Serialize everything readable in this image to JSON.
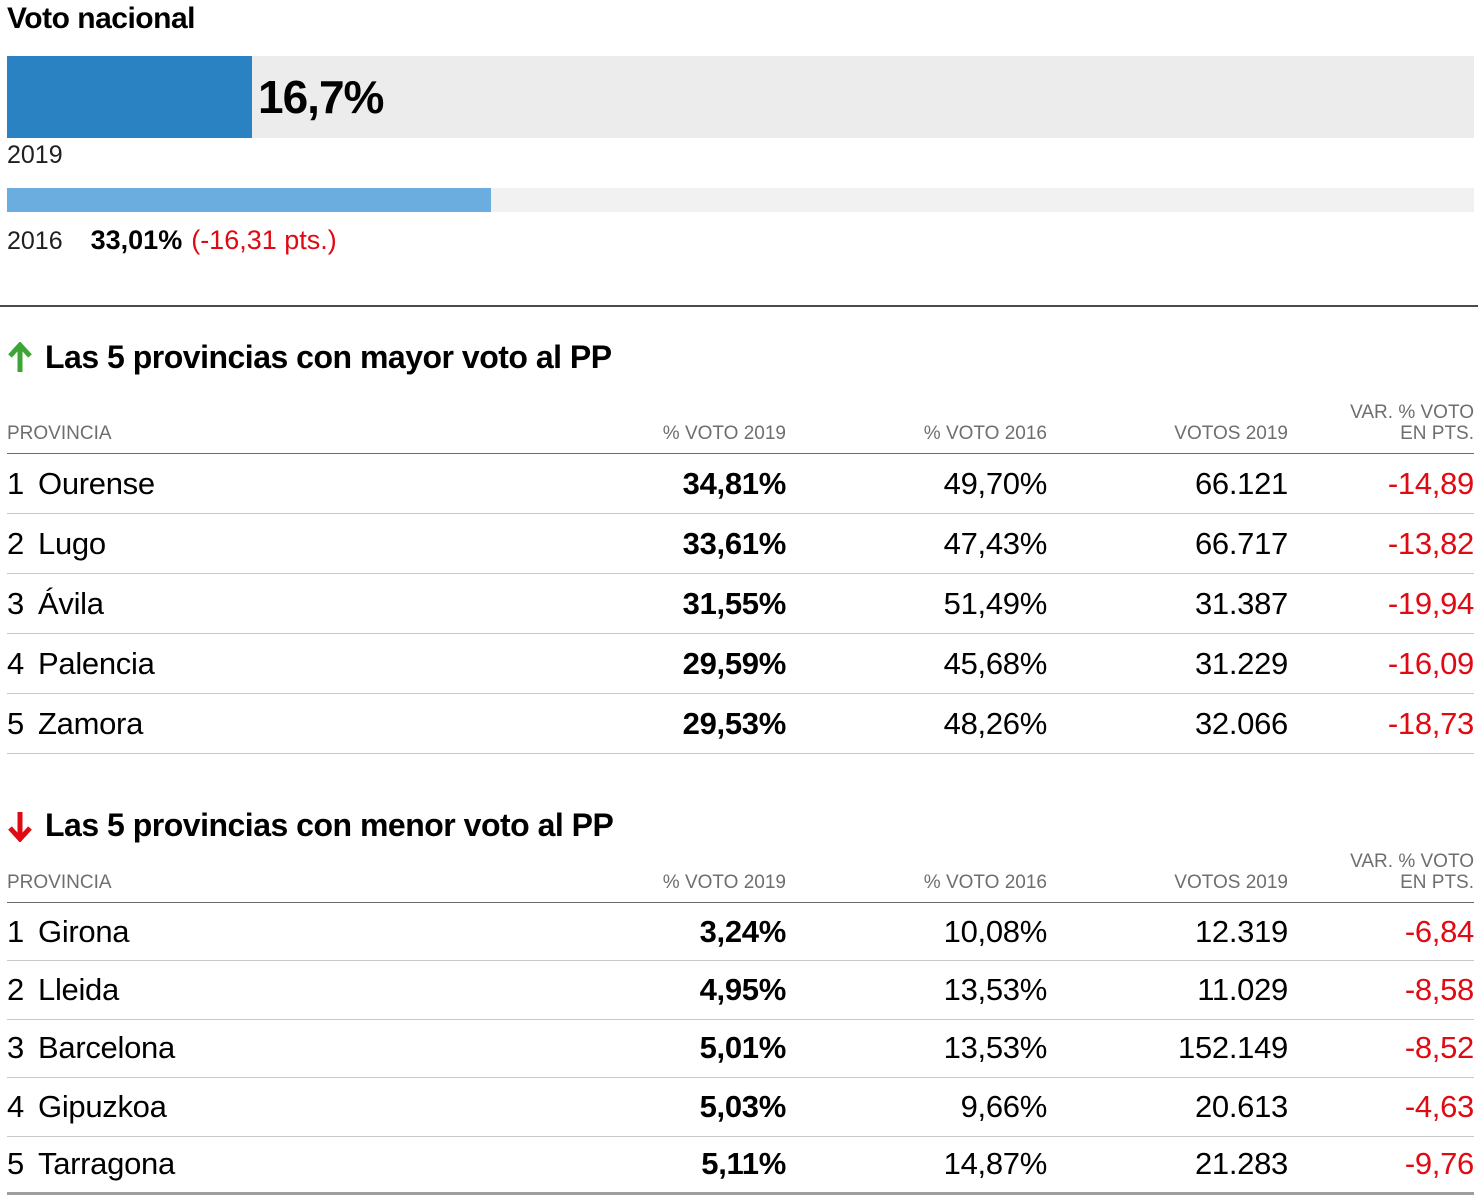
{
  "title": "Voto nacional",
  "national_chart": {
    "bars": [
      {
        "year": "2019",
        "pct": 16.7,
        "value_label": "16,7%"
      },
      {
        "year": "2016",
        "pct": 33.01,
        "value_label": "33,01%",
        "change_label": "(-16,31 pts.)"
      }
    ]
  },
  "sections": [
    {
      "direction": "up",
      "heading": "Las 5 provincias con mayor voto al PP",
      "columns": {
        "province": "PROVINCIA",
        "voto2019": "% VOTO 2019",
        "voto2016": "% VOTO 2016",
        "votos2019": "VOTOS 2019",
        "var_line1": "VAR. % VOTO",
        "var_line2": "EN PTS."
      },
      "rows": [
        {
          "rank": "1",
          "province": "Ourense",
          "voto2019": "34,81%",
          "voto2016": "49,70%",
          "votos2019": "66.121",
          "var_pts": "-14,89"
        },
        {
          "rank": "2",
          "province": "Lugo",
          "voto2019": "33,61%",
          "voto2016": "47,43%",
          "votos2019": "66.717",
          "var_pts": "-13,82"
        },
        {
          "rank": "3",
          "province": "Ávila",
          "voto2019": "31,55%",
          "voto2016": "51,49%",
          "votos2019": "31.387",
          "var_pts": "-19,94"
        },
        {
          "rank": "4",
          "province": "Palencia",
          "voto2019": "29,59%",
          "voto2016": "45,68%",
          "votos2019": "31.229",
          "var_pts": "-16,09"
        },
        {
          "rank": "5",
          "province": "Zamora",
          "voto2019": "29,53%",
          "voto2016": "48,26%",
          "votos2019": "32.066",
          "var_pts": "-18,73"
        }
      ]
    },
    {
      "direction": "down",
      "heading": "Las 5 provincias con menor voto al PP",
      "columns": {
        "province": "PROVINCIA",
        "voto2019": "% VOTO 2019",
        "voto2016": "% VOTO 2016",
        "votos2019": "VOTOS 2019",
        "var_line1": "VAR. % VOTO",
        "var_line2": "EN PTS."
      },
      "rows": [
        {
          "rank": "1",
          "province": "Girona",
          "voto2019": "3,24%",
          "voto2016": "10,08%",
          "votos2019": "12.319",
          "var_pts": "-6,84"
        },
        {
          "rank": "2",
          "province": "Lleida",
          "voto2019": "4,95%",
          "voto2016": "13,53%",
          "votos2019": "11.029",
          "var_pts": "-8,58"
        },
        {
          "rank": "3",
          "province": "Barcelona",
          "voto2019": "5,01%",
          "voto2016": "13,53%",
          "votos2019": "152.149",
          "var_pts": "-8,52"
        },
        {
          "rank": "4",
          "province": "Gipuzkoa",
          "voto2019": "5,03%",
          "voto2016": "9,66%",
          "votos2019": "20.613",
          "var_pts": "-4,63"
        },
        {
          "rank": "5",
          "province": "Tarragona",
          "voto2019": "5,11%",
          "voto2016": "14,87%",
          "votos2019": "21.283",
          "var_pts": "-9,76"
        }
      ]
    }
  ],
  "colors": {
    "bar_2019": "#2a82c2",
    "bar_2016": "#6badde",
    "bar_track": "#ececec",
    "negative_red": "#df0a14",
    "arrow_up_green": "#3da535",
    "arrow_down_red": "#df0a14",
    "header_gray": "#6e6e6e"
  },
  "chart_data": [
    {
      "type": "bar",
      "title": "Voto nacional",
      "orientation": "horizontal",
      "categories": [
        "2019",
        "2016"
      ],
      "values": [
        16.7,
        33.01
      ],
      "value_labels": [
        "16,7%",
        "33,01%"
      ],
      "annotation": "(-16,31 pts.)",
      "xlim": [
        0,
        100
      ],
      "unit": "% del voto nacional",
      "grid": false,
      "legend": false
    },
    {
      "type": "table",
      "title": "Las 5 provincias con mayor voto al PP",
      "columns": [
        "PROVINCIA",
        "% VOTO 2019",
        "% VOTO 2016",
        "VOTOS 2019",
        "VAR. % VOTO EN PTS."
      ],
      "rows": [
        [
          "Ourense",
          34.81,
          49.7,
          66121,
          -14.89
        ],
        [
          "Lugo",
          33.61,
          47.43,
          66717,
          -13.82
        ],
        [
          "Ávila",
          31.55,
          51.49,
          31387,
          -19.94
        ],
        [
          "Palencia",
          29.59,
          45.68,
          31229,
          -16.09
        ],
        [
          "Zamora",
          29.53,
          48.26,
          32066,
          -18.73
        ]
      ]
    },
    {
      "type": "table",
      "title": "Las 5 provincias con menor voto al PP",
      "columns": [
        "PROVINCIA",
        "% VOTO 2019",
        "% VOTO 2016",
        "VOTOS 2019",
        "VAR. % VOTO EN PTS."
      ],
      "rows": [
        [
          "Girona",
          3.24,
          10.08,
          12319,
          -6.84
        ],
        [
          "Lleida",
          4.95,
          13.53,
          11029,
          -8.58
        ],
        [
          "Barcelona",
          5.01,
          13.53,
          152149,
          -8.52
        ],
        [
          "Gipuzkoa",
          5.03,
          9.66,
          20613,
          -4.63
        ],
        [
          "Tarragona",
          5.11,
          14.87,
          21283,
          -9.76
        ]
      ]
    }
  ]
}
